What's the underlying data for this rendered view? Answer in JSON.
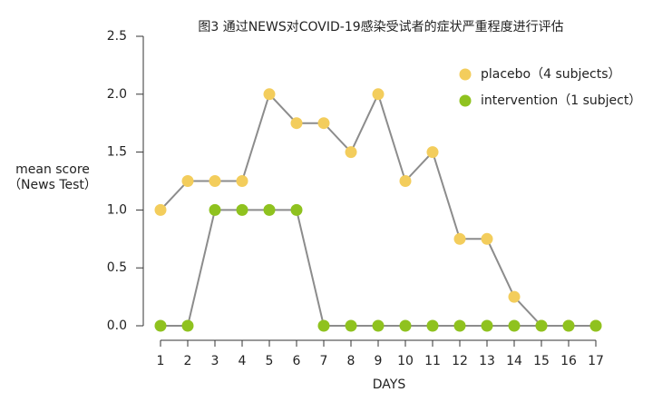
{
  "chart_data": {
    "type": "line",
    "title": "图3 通过NEWS对COVID-19感染受试者的症状严重程度进行评估",
    "y_label": [
      "mean score",
      "（News Test）"
    ],
    "x_label": "DAYS",
    "x": [
      1,
      2,
      3,
      4,
      5,
      6,
      7,
      8,
      9,
      10,
      11,
      12,
      13,
      14,
      15,
      16,
      17
    ],
    "xlim": [
      1,
      17
    ],
    "xticks": [
      1,
      2,
      3,
      4,
      5,
      6,
      7,
      8,
      9,
      10,
      11,
      12,
      13,
      14,
      15,
      16,
      17
    ],
    "ylim": [
      0,
      2.5
    ],
    "yticks": [
      {
        "value": 0,
        "label": "0.0"
      },
      {
        "value": 0.5,
        "label": "0.5"
      },
      {
        "value": 1,
        "label": "1.0"
      },
      {
        "value": 1.5,
        "label": "1.5"
      },
      {
        "value": 2,
        "label": "2.0"
      },
      {
        "value": 2.5,
        "label": "2.5"
      }
    ],
    "legend": "top-right",
    "series": [
      {
        "name": "placebo（4 subjects）",
        "color": "#f3cd5c",
        "values": [
          1.0,
          1.25,
          1.25,
          1.25,
          2.0,
          1.75,
          1.75,
          1.5,
          2.0,
          1.25,
          1.5,
          0.75,
          0.75,
          0.25,
          0,
          0,
          0
        ]
      },
      {
        "name": "intervention（1 subject）",
        "color": "#8fc21f",
        "values": [
          0,
          0,
          1,
          1,
          1,
          1,
          0,
          0,
          0,
          0,
          0,
          0,
          0,
          0,
          0,
          0,
          0
        ]
      }
    ]
  }
}
